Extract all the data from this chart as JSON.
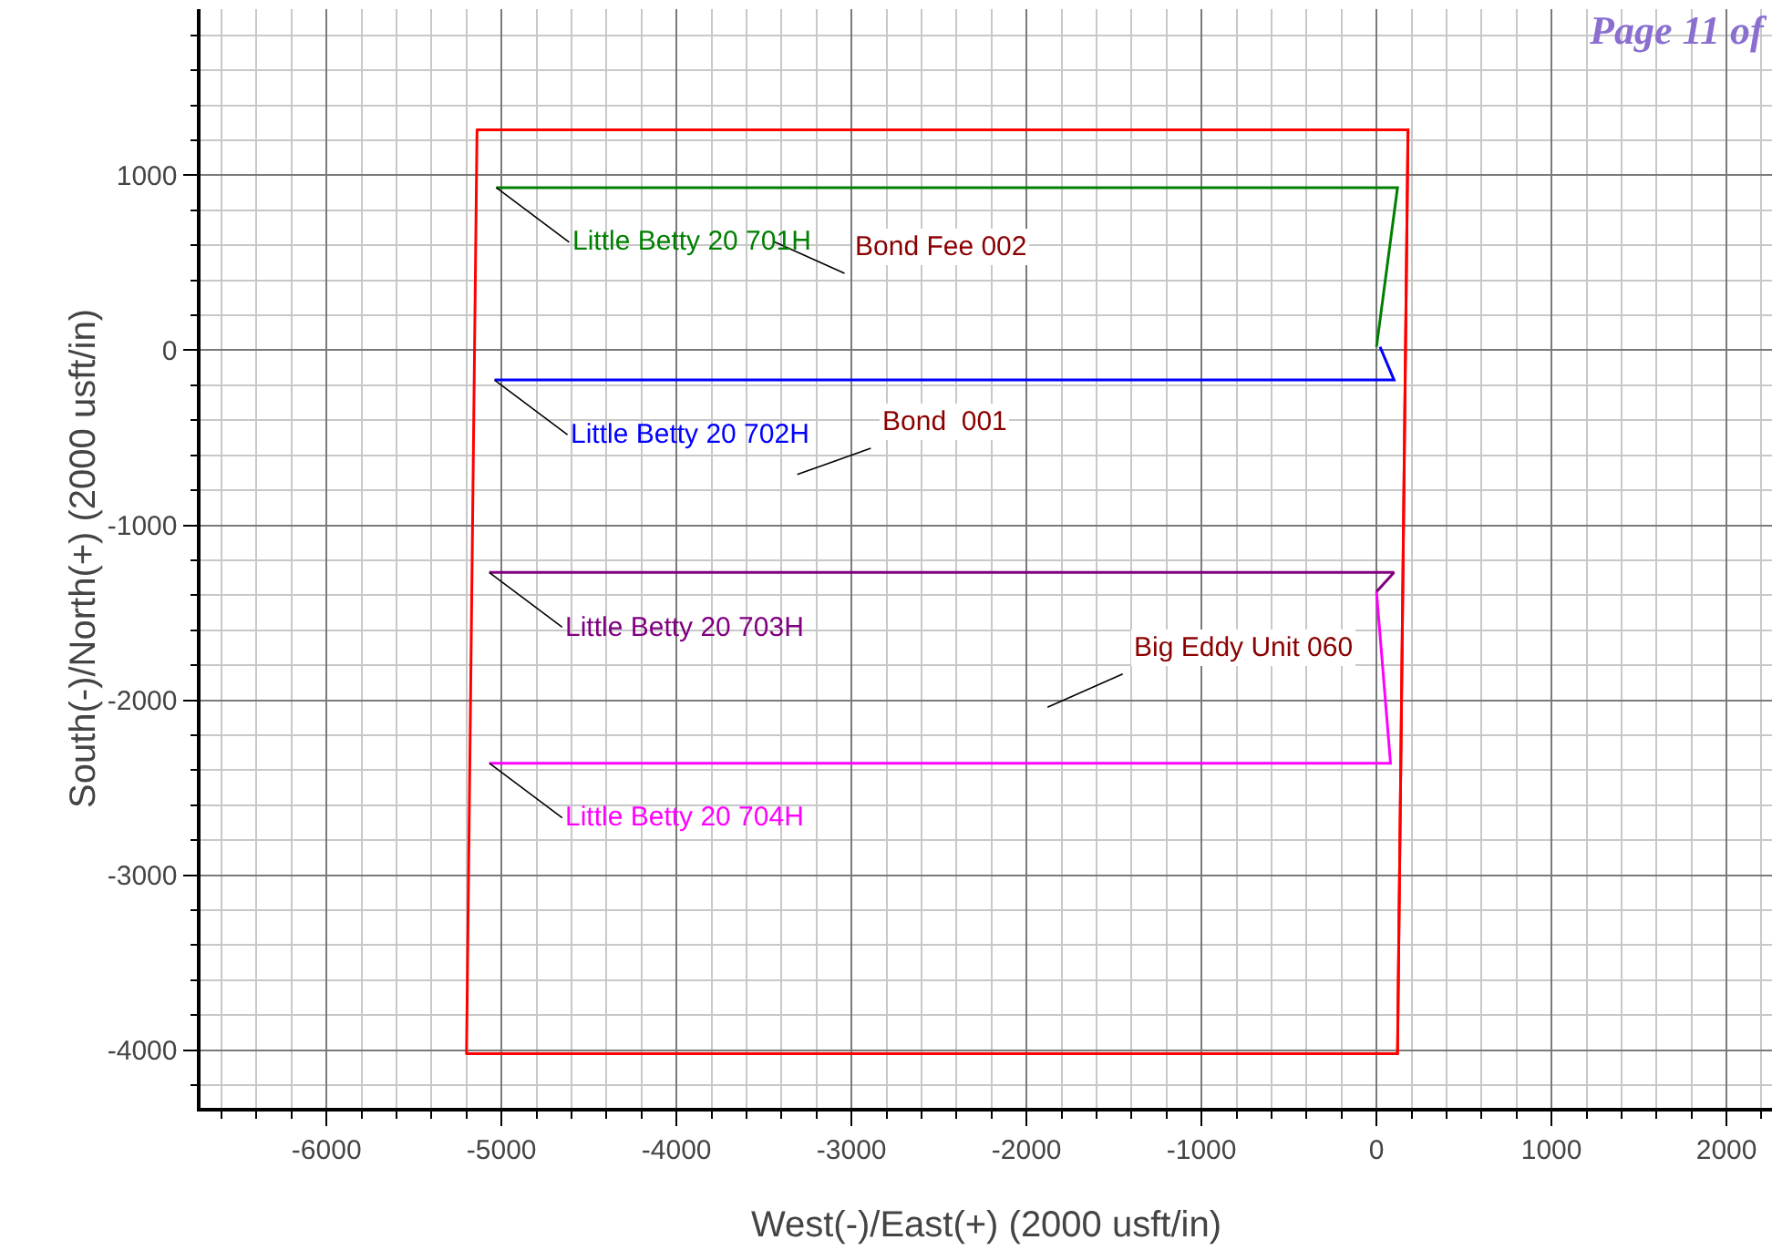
{
  "chart_data": {
    "type": "line",
    "xlabel": "West(-)/East(+) (2000 usft/in)",
    "ylabel": "South(-)/North(+) (2000 usft/in)",
    "xlim": [
      -6720,
      2260
    ],
    "xticks": [
      -6000,
      -5000,
      -4000,
      -3000,
      -2000,
      -1000,
      0,
      1000,
      2000
    ],
    "ylim": [
      -4330,
      1950
    ],
    "yticks": [
      -4000,
      -3000,
      -2000,
      -1000,
      0,
      1000
    ],
    "grid": true,
    "legend": false,
    "marker": "none",
    "line_style": "solid",
    "series": [
      {
        "color": "#ff0000",
        "x": [
          -5140,
          180,
          120,
          -5200
        ],
        "values": [
          1260,
          1260,
          -4020,
          -4020
        ]
      },
      {
        "name": "Little Betty 20 701H",
        "color": "#008000",
        "x": [
          0,
          120,
          -5030
        ],
        "values": [
          20,
          930,
          930
        ]
      },
      {
        "name": "Little Betty 20 702H",
        "color": "#0000ff",
        "x": [
          20,
          100,
          -5040
        ],
        "values": [
          20,
          -170,
          -170
        ]
      },
      {
        "name": "Little Betty 20 703H",
        "color": "#800080",
        "x": [
          0,
          100,
          -5070
        ],
        "values": [
          -1380,
          -1270,
          -1270
        ]
      },
      {
        "name": "Little Betty 20 704H",
        "color": "#ff00ff",
        "x": [
          0,
          80,
          -5070
        ],
        "values": [
          -1380,
          -2360,
          -2360
        ]
      },
      {
        "name": "Bond Fee 002",
        "color": "#000000",
        "x": [
          -3440,
          -3040
        ],
        "values": [
          620,
          440
        ]
      },
      {
        "name": "Bond  001",
        "color": "#000000",
        "x": [
          -3310,
          -2890
        ],
        "values": [
          -710,
          -560
        ]
      },
      {
        "name": "Big Eddy Unit 060",
        "color": "#000000",
        "x": [
          -1880,
          -1450
        ],
        "values": [
          -2040,
          -1850
        ]
      }
    ],
    "annotations": [
      "Page 11 of"
    ]
  }
}
